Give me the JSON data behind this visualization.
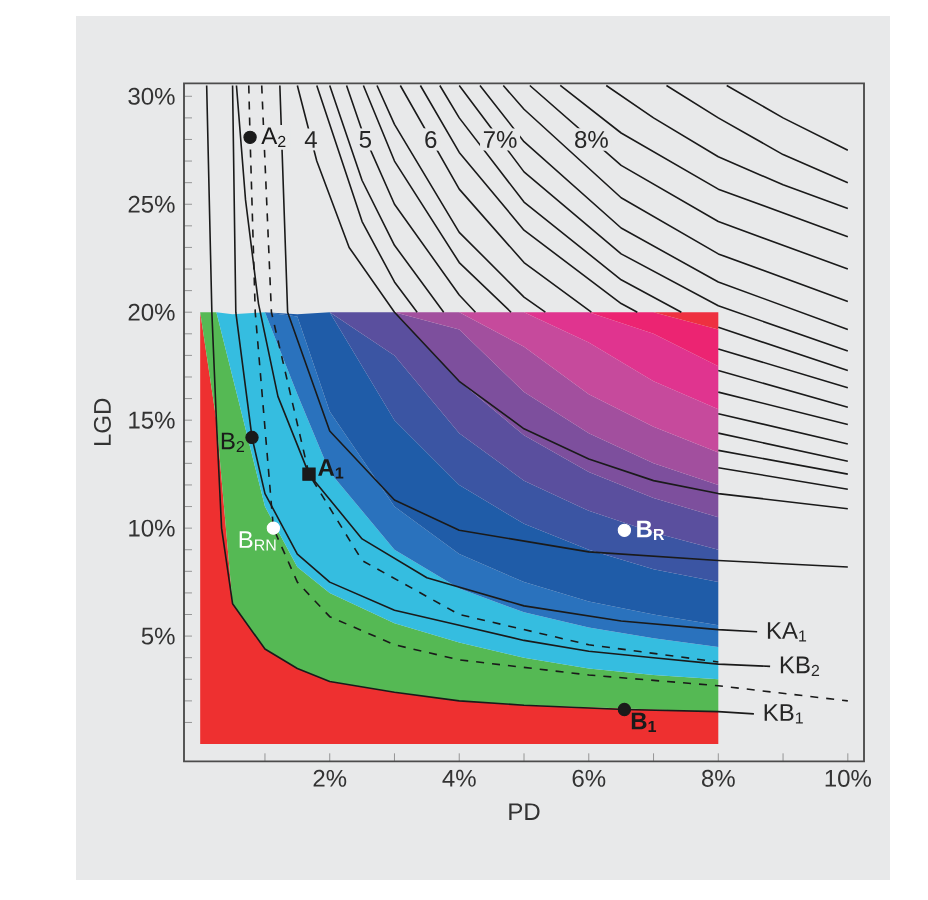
{
  "chart_data": {
    "type": "line",
    "stacked": true,
    "x": [
      0,
      0.25,
      0.5,
      1,
      1.5,
      2,
      3,
      4,
      5,
      6,
      7,
      8
    ],
    "xlabel": "PD",
    "ylabel": "LGD",
    "xlim": [
      -0.25,
      10.25
    ],
    "ylim": [
      -0.8,
      30.6
    ],
    "xticks": [
      {
        "value": 1,
        "label": null
      },
      {
        "value": 2,
        "label": "2%"
      },
      {
        "value": 3,
        "label": null
      },
      {
        "value": 4,
        "label": "4%"
      },
      {
        "value": 5,
        "label": null
      },
      {
        "value": 6,
        "label": "6%"
      },
      {
        "value": 7,
        "label": null
      },
      {
        "value": 8,
        "label": "8%"
      },
      {
        "value": 9,
        "label": null
      },
      {
        "value": 10,
        "label": "10%"
      }
    ],
    "yticks": [
      {
        "value": 1,
        "label": null
      },
      {
        "value": 2,
        "label": null
      },
      {
        "value": 3,
        "label": null
      },
      {
        "value": 4,
        "label": null
      },
      {
        "value": 5,
        "label": "5%"
      },
      {
        "value": 6,
        "label": null
      },
      {
        "value": 7,
        "label": null
      },
      {
        "value": 8,
        "label": null
      },
      {
        "value": 9,
        "label": null
      },
      {
        "value": 10,
        "label": "10%"
      },
      {
        "value": 11,
        "label": null
      },
      {
        "value": 12,
        "label": null
      },
      {
        "value": 13,
        "label": null
      },
      {
        "value": 14,
        "label": null
      },
      {
        "value": 15,
        "label": "15%"
      },
      {
        "value": 16,
        "label": null
      },
      {
        "value": 17,
        "label": null
      },
      {
        "value": 18,
        "label": null
      },
      {
        "value": 19,
        "label": null
      },
      {
        "value": 20,
        "label": "20%"
      },
      {
        "value": 21,
        "label": null
      },
      {
        "value": 22,
        "label": null
      },
      {
        "value": 23,
        "label": null
      },
      {
        "value": 24,
        "label": null
      },
      {
        "value": 25,
        "label": "25%"
      },
      {
        "value": 26,
        "label": null
      },
      {
        "value": 27,
        "label": null
      },
      {
        "value": 28,
        "label": null
      },
      {
        "value": 29,
        "label": null
      },
      {
        "value": 30,
        "label": "30%"
      }
    ],
    "annotations": [
      {
        "text": "4",
        "x": 1.71,
        "y": 28.0
      },
      {
        "text": "5",
        "x": 2.55,
        "y": 28.0
      },
      {
        "text": "6",
        "x": 3.56,
        "y": 28.0
      },
      {
        "text": "7%",
        "x": 4.63,
        "y": 28.0
      },
      {
        "text": "8%",
        "x": 6.04,
        "y": 28.0
      }
    ],
    "series": [
      {
        "type": "area",
        "color": "#ee3030",
        "values": [
          20,
          15,
          6.5,
          4.4,
          3.5,
          2.9,
          2.4,
          2.0,
          1.8,
          1.7,
          1.6,
          1.5
        ]
      },
      {
        "type": "area",
        "color": "#55b954",
        "values": [
          0,
          5,
          10.5,
          6.6,
          4.7,
          4.1,
          3.2,
          2.7,
          2.2,
          1.8,
          1.6,
          1.5
        ]
      },
      {
        "type": "area",
        "color": "#35bde0",
        "values": [
          null,
          0,
          2.9,
          9,
          8,
          5.6,
          3.4,
          2.5,
          2.1,
          1.9,
          1.7,
          1.5
        ]
      },
      {
        "type": "area",
        "color": "#2a72bd",
        "values": [
          null,
          null,
          null,
          0,
          3.6,
          2.8,
          2,
          1.6,
          1.4,
          1.2,
          1.1,
          1.0
        ]
      },
      {
        "type": "area",
        "color": "#1f5ca8",
        "values": [
          null,
          null,
          null,
          0,
          0.1,
          4.6,
          4,
          3.2,
          2.7,
          2.4,
          2.1,
          2.0
        ]
      },
      {
        "type": "area",
        "color": "#3b55a3",
        "values": [
          null,
          null,
          null,
          null,
          null,
          0,
          3,
          2.4,
          2,
          1.8,
          1.7,
          1.5
        ]
      },
      {
        "type": "area",
        "color": "#5a4f9e",
        "values": [
          null,
          null,
          null,
          null,
          null,
          0,
          2,
          2.4,
          2.1,
          1.8,
          1.6,
          1.5
        ]
      },
      {
        "type": "area",
        "color": "#7d4f9d",
        "values": [
          null,
          null,
          null,
          null,
          null,
          null,
          0,
          2.4,
          2,
          1.8,
          1.6,
          1.5
        ]
      },
      {
        "type": "area",
        "color": "#a24f9e",
        "values": [
          null,
          null,
          null,
          null,
          null,
          null,
          0,
          0.8,
          2.1,
          1.8,
          1.7,
          1.5
        ]
      },
      {
        "type": "area",
        "color": "#c64a9c",
        "values": [
          null,
          null,
          null,
          null,
          null,
          null,
          null,
          0,
          1.6,
          2.4,
          2.1,
          2.0
        ]
      },
      {
        "type": "area",
        "color": "#e0348f",
        "values": [
          null,
          null,
          null,
          null,
          null,
          null,
          null,
          null,
          0,
          1.4,
          2.2,
          2.0
        ]
      },
      {
        "type": "area",
        "color": "#ec2472",
        "values": [
          null,
          null,
          null,
          null,
          null,
          null,
          null,
          null,
          null,
          0,
          1,
          1.7
        ]
      },
      {
        "type": "area",
        "color": "#ee3040",
        "values": [
          null,
          null,
          null,
          null,
          null,
          null,
          null,
          null,
          null,
          null,
          0,
          0.8
        ]
      },
      {
        "color": "#1a1a1a",
        "x": [
          1.8,
          2.5,
          3,
          3.35,
          4,
          5,
          6.5,
          8,
          10
        ],
        "values": [
          30.5,
          24.2,
          21.4,
          20,
          null,
          null,
          null,
          12.8,
          11.8
        ]
      },
      {
        "color": "#1a1a1a",
        "x": [
          2.0,
          2.5,
          3,
          3.76,
          4,
          5,
          6.5,
          8,
          10
        ],
        "values": [
          30.5,
          26.1,
          23.1,
          20,
          null,
          null,
          null,
          13.6,
          12.5
        ]
      },
      {
        "color": "#1a1a1a",
        "x": [
          2.26,
          2.5,
          3,
          4,
          4.25,
          5,
          6.5,
          8,
          10
        ],
        "values": [
          30.5,
          28.4,
          25.0,
          20.8,
          20,
          null,
          null,
          14.4,
          13.1
        ]
      },
      {
        "color": "#1a1a1a",
        "x": [
          2.52,
          3,
          4,
          4.8,
          5,
          6.5,
          8,
          10
        ],
        "values": [
          30.5,
          27.0,
          22.3,
          20,
          null,
          null,
          15.3,
          13.9
        ]
      },
      {
        "color": "#1a1a1a",
        "x": [
          2.73,
          3,
          4,
          5,
          5.33,
          6.5,
          8,
          10
        ],
        "values": [
          30.5,
          28.7,
          23.7,
          20.7,
          20,
          null,
          16.3,
          14.8
        ]
      },
      {
        "color": "#1a1a1a",
        "x": [
          3.09,
          4,
          5,
          6.04,
          6.5,
          8,
          10
        ],
        "values": [
          30.5,
          25.7,
          22.3,
          20,
          null,
          17.3,
          15.6
        ]
      },
      {
        "color": "#1a1a1a",
        "x": [
          3.4,
          4,
          5,
          6.5,
          6.75,
          7.3,
          8,
          10
        ],
        "values": [
          30.5,
          27.4,
          23.8,
          20.4,
          20,
          null,
          18.3,
          16.5
        ]
      },
      {
        "color": "#1a1a1a",
        "x": [
          3.7,
          4,
          5,
          6.5,
          7.43,
          7.7,
          8,
          10
        ],
        "values": [
          30.5,
          29.0,
          25.1,
          21.5,
          20,
          null,
          19.3,
          17.3
        ]
      },
      {
        "color": "#1a1a1a",
        "x": [
          4.0,
          5,
          6.5,
          8,
          10
        ],
        "values": [
          30.5,
          26.5,
          22.7,
          20.3,
          18.2
        ]
      },
      {
        "color": "#1a1a1a",
        "x": [
          4.32,
          5,
          6.5,
          8,
          10
        ],
        "values": [
          30.5,
          27.9,
          23.9,
          21.4,
          19.2
        ]
      },
      {
        "color": "#1a1a1a",
        "x": [
          4.68,
          5,
          6.5,
          8,
          10
        ],
        "values": [
          30.5,
          29.4,
          25.3,
          22.7,
          20.5
        ]
      },
      {
        "color": "#1a1a1a",
        "x": [
          5.09,
          6.5,
          8,
          10
        ],
        "values": [
          30.5,
          26.8,
          24.2,
          22.0
        ]
      },
      {
        "color": "#1a1a1a",
        "x": [
          5.56,
          6.5,
          8,
          10
        ],
        "values": [
          30.5,
          28.3,
          25.7,
          23.5
        ]
      },
      {
        "color": "#1a1a1a",
        "x": [
          6.27,
          7,
          8,
          9,
          10
        ],
        "values": [
          30.5,
          29.0,
          27.2,
          25.9,
          24.8
        ]
      },
      {
        "color": "#1a1a1a",
        "x": [
          7.2,
          8,
          9,
          10
        ],
        "values": [
          30.5,
          29.0,
          27.3,
          26.0
        ]
      },
      {
        "color": "#1a1a1a",
        "x": [
          8.13,
          9,
          10
        ],
        "values": [
          30.5,
          29.0,
          27.5
        ]
      },
      {
        "color": "#1a1a1a",
        "x": [
          1.5,
          1.8,
          2.3,
          3,
          4,
          5,
          6,
          7,
          8,
          10
        ],
        "values": [
          30.5,
          27,
          23,
          20,
          16.8,
          14.6,
          13.2,
          12.2,
          11.6,
          10.9
        ]
      },
      {
        "color": "#1a1a1a",
        "x": [
          1.23,
          1.35,
          2,
          3,
          4,
          6,
          8,
          10
        ],
        "values": [
          30.5,
          20,
          14.5,
          11.3,
          9.9,
          8.9,
          8.5,
          8.2
        ]
      },
      {
        "color": "#1a1a1a",
        "line_style": "dashed",
        "x": [
          0.95,
          1.1,
          1.68,
          2.5,
          4,
          6,
          8
        ],
        "values": [
          30.5,
          20,
          12.5,
          8.5,
          6.0,
          4.6,
          3.8
        ]
      },
      {
        "color": "#1a1a1a",
        "line_style": "dashed",
        "x": [
          0.75,
          0.77,
          0.85,
          1.13,
          1.5,
          2,
          3,
          4,
          6,
          8,
          10
        ],
        "values": [
          30.5,
          28.1,
          20,
          10,
          7.5,
          5.9,
          4.6,
          3.9,
          3.2,
          2.7,
          2.0
        ]
      },
      {
        "color": "#1a1a1a",
        "name": "KA$_{1}$",
        "x": [
          0.56,
          0.7,
          0.9,
          1.2,
          1.68,
          2.5,
          3.5,
          5,
          6.5,
          8,
          8.6
        ],
        "values": [
          30.5,
          25.2,
          20.4,
          16.1,
          12.5,
          9.5,
          7.7,
          6.4,
          5.7,
          5.3,
          5.2
        ]
      },
      {
        "color": "#1a1a1a",
        "name": "KB$_{2}$",
        "x": [
          0.5,
          0.55,
          0.8,
          1,
          1.5,
          2,
          3,
          4,
          5,
          6,
          7,
          8,
          8.8
        ],
        "values": [
          30.5,
          20,
          14.2,
          11.6,
          8.8,
          7.5,
          6.2,
          5.5,
          4.8,
          4.3,
          4.0,
          3.7,
          3.6
        ]
      },
      {
        "color": "#1a1a1a",
        "name": "KB$_{1}$",
        "x": [
          0.1,
          0.18,
          0.25,
          0.33,
          0.5,
          1,
          1.5,
          2,
          3,
          4,
          5,
          6.55,
          8,
          8.55
        ],
        "values": [
          30.5,
          20,
          15,
          10,
          6.5,
          4.4,
          3.5,
          2.9,
          2.4,
          2.0,
          1.8,
          1.6,
          1.5,
          1.4
        ]
      },
      {
        "type": "scatter",
        "color": "#1a1a1a",
        "marker": "circle",
        "name": "A$_{2}$",
        "x": [
          0.77
        ],
        "values": [
          28.1
        ]
      },
      {
        "type": "scatter",
        "color": "#1a1a1a",
        "marker": "square",
        "name": "A$_{1}$",
        "x": [
          1.68
        ],
        "values": [
          12.5
        ]
      },
      {
        "type": "scatter",
        "color": "#1a1a1a",
        "marker": "circle",
        "name": "B$_{2}$",
        "x": [
          0.8
        ],
        "values": [
          14.2
        ]
      },
      {
        "type": "scatter",
        "color": "#ffffff",
        "marker": "circle",
        "name": "B$_{RN}$",
        "x": [
          1.13
        ],
        "values": [
          10
        ]
      },
      {
        "type": "scatter",
        "color": "#ffffff",
        "marker": "circle",
        "name": "B$_{R}$",
        "x": [
          6.55
        ],
        "values": [
          9.9
        ]
      },
      {
        "type": "scatter",
        "color": "#1a1a1a",
        "marker": "circle",
        "name": "B$_{1}$",
        "x": [
          6.55
        ],
        "values": [
          1.6
        ]
      }
    ]
  }
}
